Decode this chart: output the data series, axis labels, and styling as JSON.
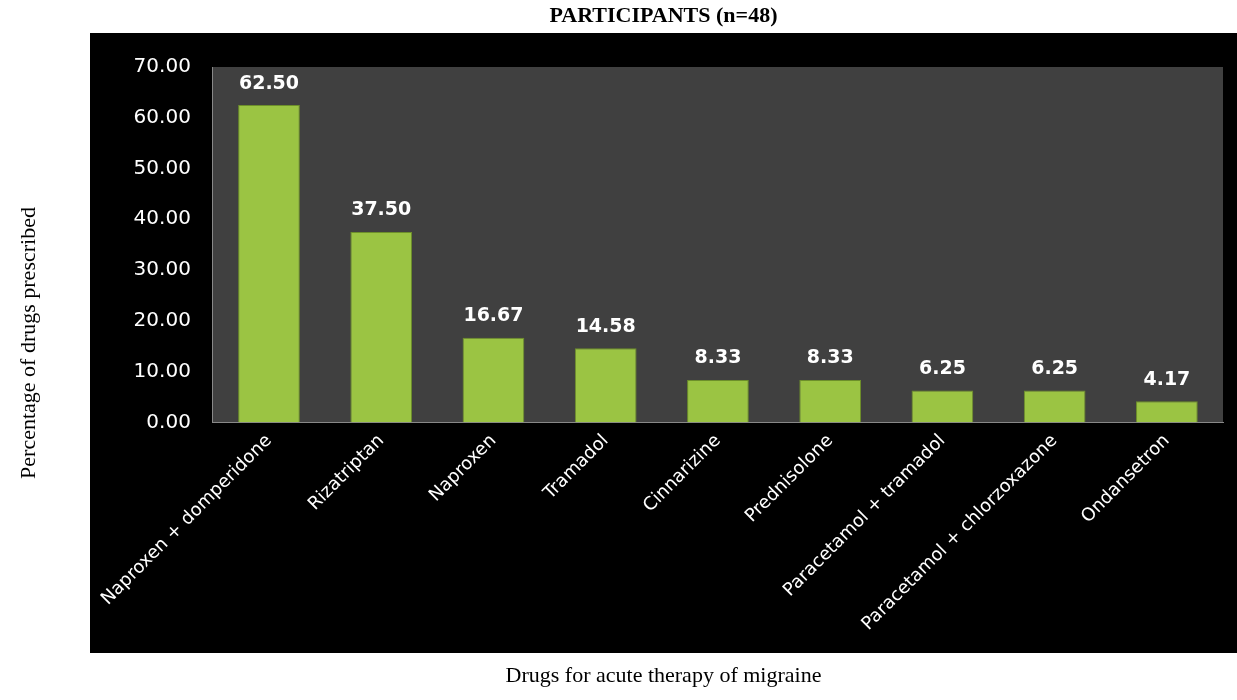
{
  "chart_data": {
    "type": "bar",
    "title": "PARTICIPANTS (n=48)",
    "xlabel": "Drugs for acute therapy of migraine",
    "ylabel": "Percentage of drugs prescribed",
    "categories": [
      "Naproxen + domperidone",
      "Rizatriptan",
      "Naproxen",
      "Tramadol",
      "Cinnarizine",
      "Prednisolone",
      "Paracetamol + tramadol",
      "Paracetamol + chlorzoxazone",
      "Ondansetron"
    ],
    "values": [
      62.5,
      37.5,
      16.67,
      14.58,
      8.33,
      8.33,
      6.25,
      6.25,
      4.17
    ],
    "value_labels": [
      "62.50",
      "37.50",
      "16.67",
      "14.58",
      "8.33",
      "8.33",
      "6.25",
      "6.25",
      "4.17"
    ],
    "color": "#9bc443",
    "ylim": [
      0,
      70
    ],
    "yticks": [
      {
        "value": 0,
        "label": "0.00"
      },
      {
        "value": 10,
        "label": "10.00"
      },
      {
        "value": 20,
        "label": "20.00"
      },
      {
        "value": 30,
        "label": "30.00"
      },
      {
        "value": 40,
        "label": "40.00"
      },
      {
        "value": 50,
        "label": "50.00"
      },
      {
        "value": 60,
        "label": "60.00"
      },
      {
        "value": 70,
        "label": "70.00"
      }
    ],
    "grid": false,
    "legend": false
  }
}
